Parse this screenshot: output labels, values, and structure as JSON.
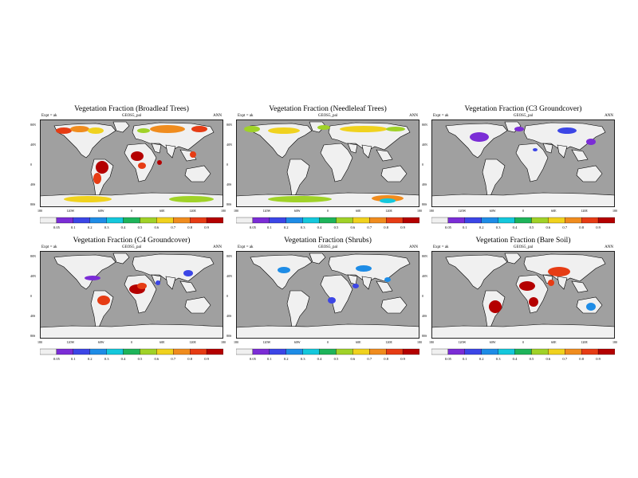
{
  "figure": {
    "panels": [
      {
        "title": "Vegetation Fraction (Broadleaf Trees)",
        "expt": "Expt = ak",
        "model": "GEOS5_pal",
        "season": "ANN",
        "pattern": "broadleaf"
      },
      {
        "title": "Vegetation Fraction (Needleleaf Trees)",
        "expt": "Expt = ak",
        "model": "GEOS5_pal",
        "season": "ANN",
        "pattern": "needleleaf"
      },
      {
        "title": "Vegetation Fraction (C3 Groundcover)",
        "expt": "Expt = ak",
        "model": "GEOS5_pal",
        "season": "ANN",
        "pattern": "c3"
      },
      {
        "title": "Vegetation Fraction (C4 Groundcover)",
        "expt": "Expt = ak",
        "model": "GEOS5_pal",
        "season": "ANN",
        "pattern": "c4"
      },
      {
        "title": "Vegetation Fraction (Shrubs)",
        "expt": "Expt = ak",
        "model": "GEOS5_pal",
        "season": "ANN",
        "pattern": "shrubs"
      },
      {
        "title": "Vegetation Fraction (Bare Soil)",
        "expt": "Expt = ak",
        "model": "GEOS5_pal",
        "season": "ANN",
        "pattern": "baresoil"
      }
    ],
    "lat_labels": [
      "80N",
      "40N",
      "0",
      "40S",
      "80S"
    ],
    "lon_labels": [
      "180",
      "120W",
      "60W",
      "0",
      "60E",
      "120E",
      "180"
    ],
    "colorbar_labels": [
      "0.05",
      "0.1",
      "0.2",
      "0.3",
      "0.4",
      "0.5",
      "0.6",
      "0.7",
      "0.8",
      "0.9"
    ],
    "colorbar_colors": [
      "#f0f0f0",
      "#7b2dd6",
      "#3c46e6",
      "#1e8ce6",
      "#14c8dc",
      "#1eb45a",
      "#a0d228",
      "#f0d21e",
      "#f08c1e",
      "#e63c14",
      "#b40000"
    ],
    "ocean_color": "#a0a0a0",
    "land_color": "#f0f0f0",
    "chart_data": {
      "type": "heatmap",
      "variable": "Vegetation Fraction",
      "colorbar_levels": [
        0.05,
        0.1,
        0.2,
        0.3,
        0.4,
        0.5,
        0.6,
        0.7,
        0.8,
        0.9
      ],
      "lat_range": [
        -90,
        90
      ],
      "lon_range": [
        -180,
        180
      ],
      "panels": [
        "Broadleaf Trees",
        "Needleleaf Trees",
        "C3 Groundcover",
        "C4 Groundcover",
        "Shrubs",
        "Bare Soil"
      ]
    }
  }
}
